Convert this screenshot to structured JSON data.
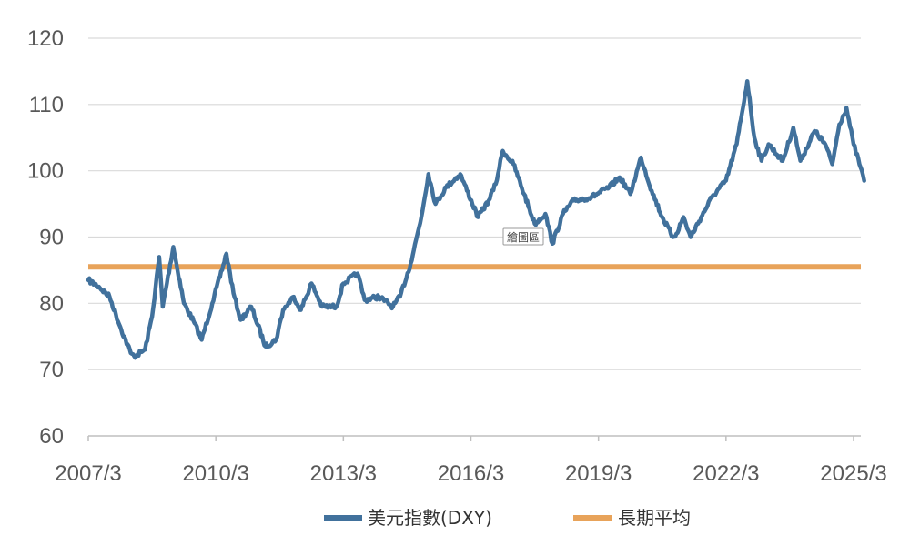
{
  "chart_data": {
    "type": "line",
    "title": "",
    "xlabel": "",
    "ylabel": "",
    "ylim": [
      60,
      120
    ],
    "yticks": [
      60,
      70,
      80,
      90,
      100,
      110,
      120
    ],
    "xticks": [
      "2007/3",
      "2010/3",
      "2013/3",
      "2016/3",
      "2019/3",
      "2022/3",
      "2025/3"
    ],
    "xlim": [
      "2007/3",
      "2025/6"
    ],
    "grid": true,
    "legend_position": "bottom",
    "tooltip": "繪圖區",
    "series": [
      {
        "name": "美元指數(DXY)",
        "color": "#41719C",
        "points": [
          [
            "2007/3",
            83.5
          ],
          [
            "2007/6",
            82.5
          ],
          [
            "2007/9",
            81.0
          ],
          [
            "2007/12",
            76.5
          ],
          [
            "2008/3",
            72.5
          ],
          [
            "2008/4",
            72.0
          ],
          [
            "2008/7",
            73.0
          ],
          [
            "2008/9",
            78.0
          ],
          [
            "2008/11",
            87.0
          ],
          [
            "2008/12",
            79.5
          ],
          [
            "2009/3",
            88.5
          ],
          [
            "2009/6",
            80.0
          ],
          [
            "2009/9",
            77.0
          ],
          [
            "2009/11",
            74.5
          ],
          [
            "2010/2",
            80.0
          ],
          [
            "2010/6",
            87.5
          ],
          [
            "2010/8",
            81.5
          ],
          [
            "2010/10",
            77.5
          ],
          [
            "2011/1",
            79.5
          ],
          [
            "2011/5",
            73.5
          ],
          [
            "2011/8",
            74.5
          ],
          [
            "2011/10",
            79.0
          ],
          [
            "2012/1",
            81.0
          ],
          [
            "2012/3",
            79.0
          ],
          [
            "2012/6",
            83.0
          ],
          [
            "2012/9",
            79.5
          ],
          [
            "2013/1",
            79.5
          ],
          [
            "2013/3",
            83.0
          ],
          [
            "2013/7",
            84.5
          ],
          [
            "2013/9",
            80.5
          ],
          [
            "2014/1",
            81.0
          ],
          [
            "2014/5",
            79.5
          ],
          [
            "2014/7",
            81.0
          ],
          [
            "2014/10",
            86.0
          ],
          [
            "2015/1",
            93.0
          ],
          [
            "2015/3",
            99.5
          ],
          [
            "2015/5",
            95.0
          ],
          [
            "2015/8",
            97.5
          ],
          [
            "2015/12",
            99.5
          ],
          [
            "2016/5",
            93.0
          ],
          [
            "2016/8",
            95.5
          ],
          [
            "2016/10",
            98.0
          ],
          [
            "2016/12",
            103.0
          ],
          [
            "2017/3",
            101.0
          ],
          [
            "2017/6",
            96.5
          ],
          [
            "2017/9",
            92.0
          ],
          [
            "2017/12",
            93.5
          ],
          [
            "2018/2",
            89.0
          ],
          [
            "2018/5",
            93.5
          ],
          [
            "2018/8",
            95.5
          ],
          [
            "2019/1",
            96.0
          ],
          [
            "2019/6",
            97.5
          ],
          [
            "2019/9",
            99.0
          ],
          [
            "2019/12",
            96.5
          ],
          [
            "2020/3",
            102.0
          ],
          [
            "2020/6",
            97.0
          ],
          [
            "2020/9",
            93.0
          ],
          [
            "2020/12",
            90.0
          ],
          [
            "2021/1",
            90.5
          ],
          [
            "2021/3",
            93.0
          ],
          [
            "2021/5",
            90.0
          ],
          [
            "2021/8",
            93.0
          ],
          [
            "2021/11",
            96.0
          ],
          [
            "2022/3",
            98.5
          ],
          [
            "2022/6",
            104.0
          ],
          [
            "2022/9",
            113.5
          ],
          [
            "2022/11",
            105.0
          ],
          [
            "2023/1",
            101.5
          ],
          [
            "2023/3",
            104.0
          ],
          [
            "2023/7",
            101.5
          ],
          [
            "2023/10",
            106.5
          ],
          [
            "2023/12",
            101.5
          ],
          [
            "2024/4",
            106.0
          ],
          [
            "2024/7",
            104.0
          ],
          [
            "2024/9",
            101.0
          ],
          [
            "2024/11",
            107.0
          ],
          [
            "2025/1",
            109.5
          ],
          [
            "2025/3",
            104.0
          ],
          [
            "2025/5",
            100.5
          ],
          [
            "2025/6",
            98.5
          ]
        ]
      },
      {
        "name": "長期平均",
        "color": "#E8A35A",
        "value": 85.5
      }
    ]
  }
}
